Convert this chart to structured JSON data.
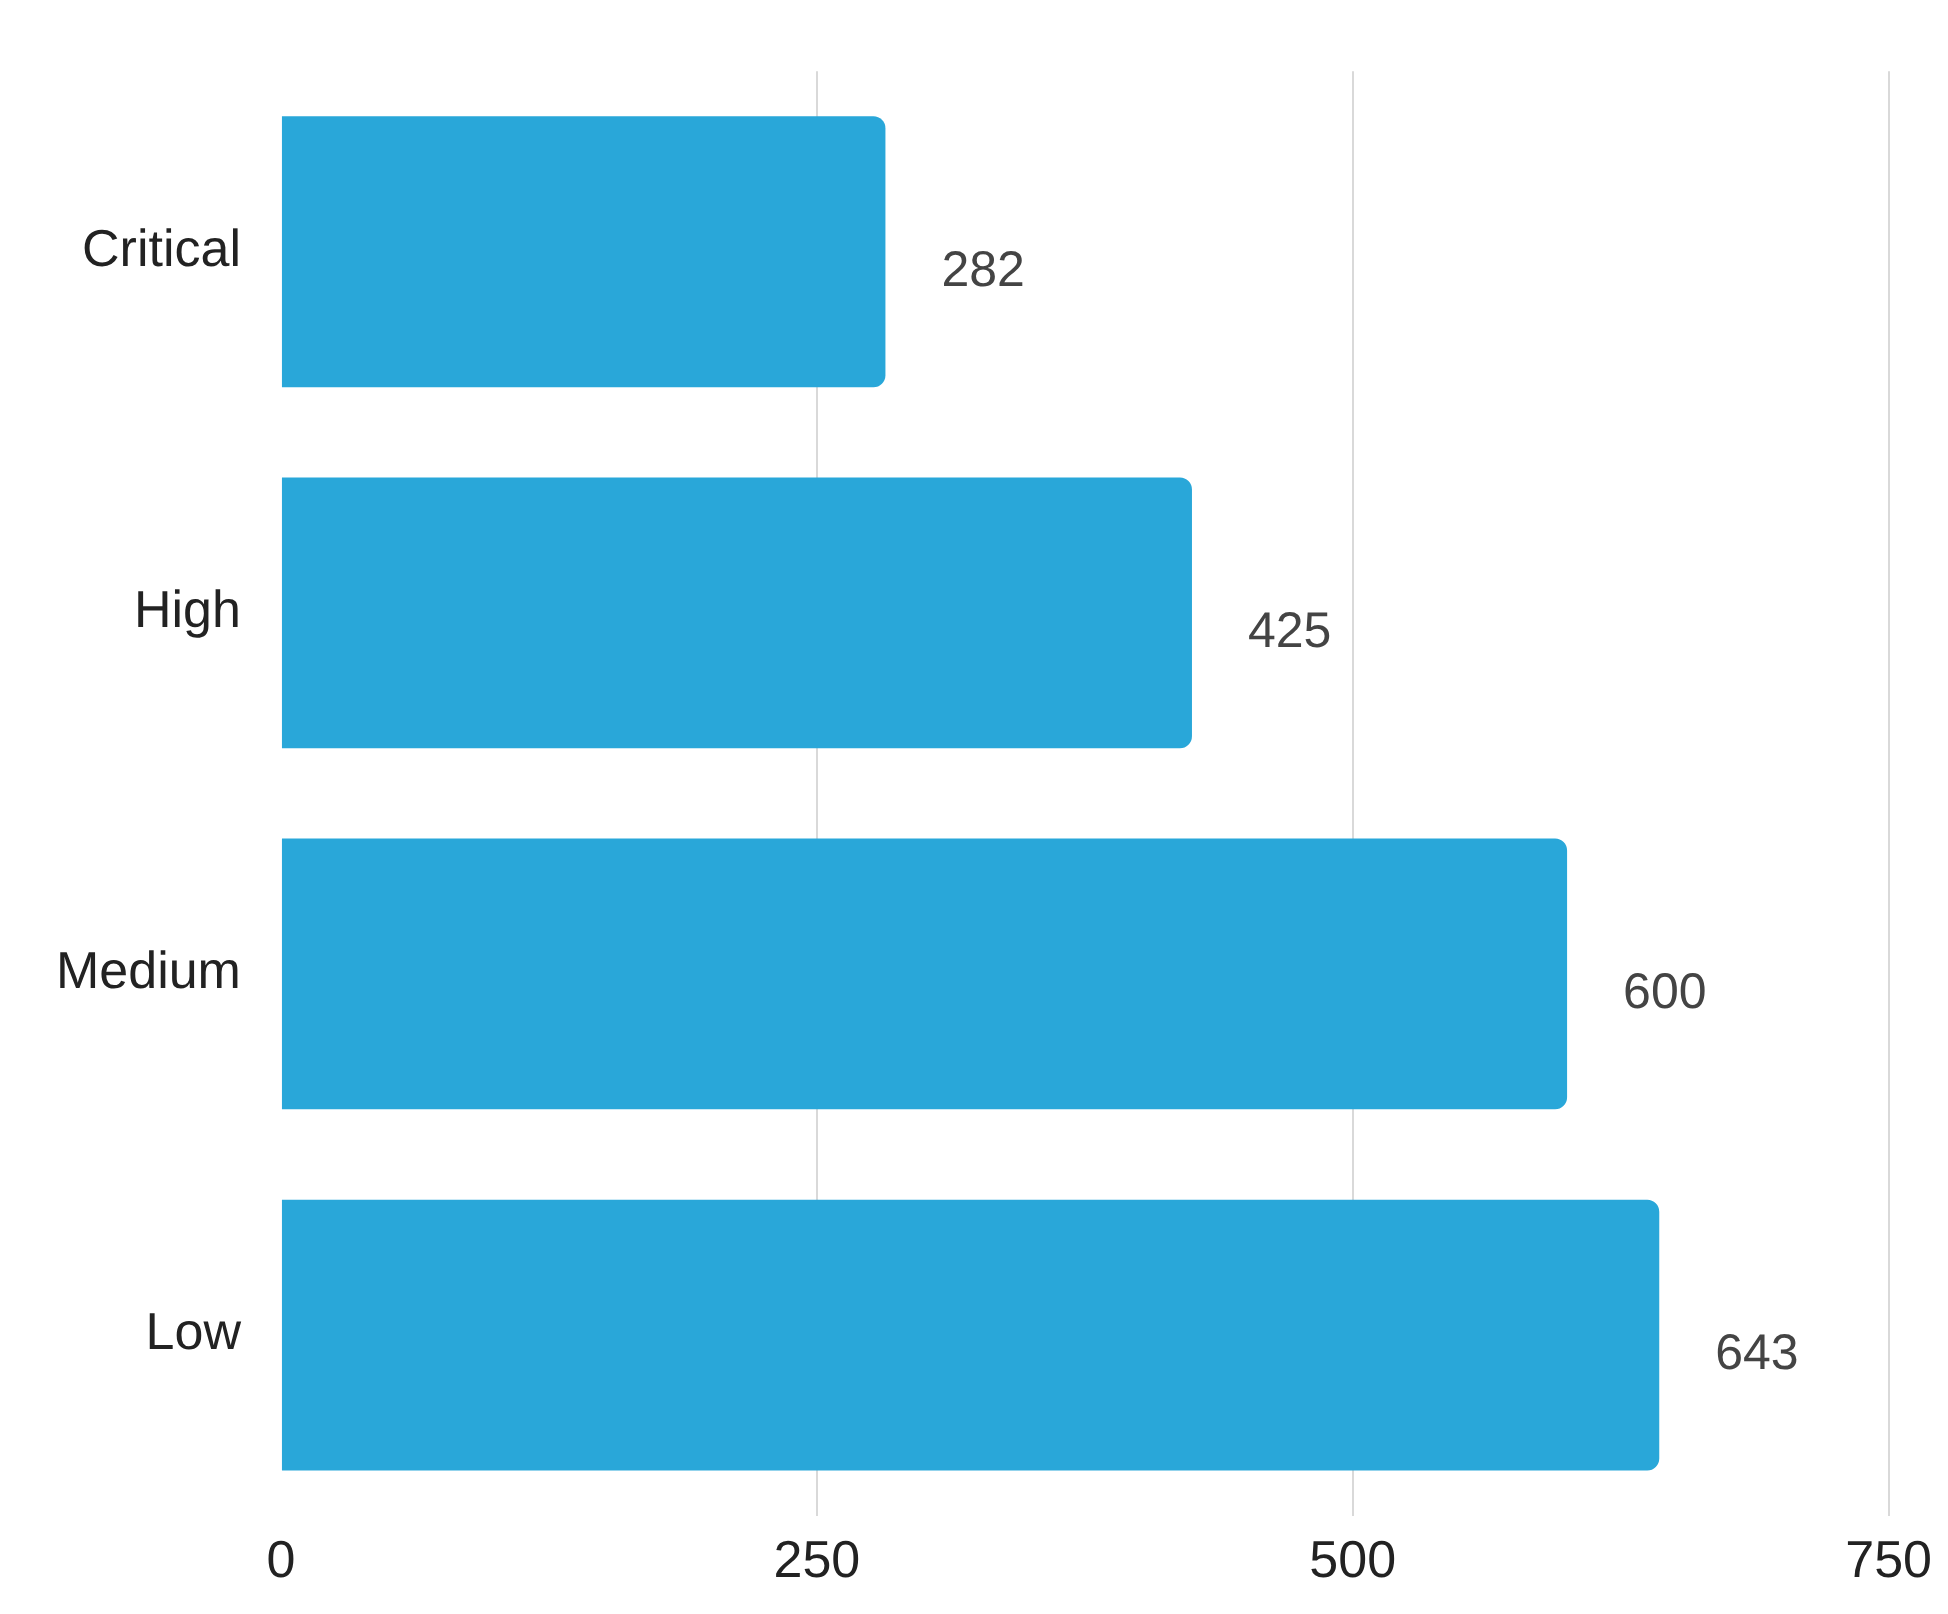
{
  "chart_data": {
    "type": "bar",
    "orientation": "horizontal",
    "categories": [
      "Critical",
      "High",
      "Medium",
      "Low"
    ],
    "values": [
      282,
      425,
      600,
      643
    ],
    "color": "#29a7d9",
    "xlim": [
      0,
      750
    ],
    "xticks": [
      0,
      250,
      500,
      750
    ],
    "grid": "x",
    "data_labels": true,
    "legend": false
  }
}
